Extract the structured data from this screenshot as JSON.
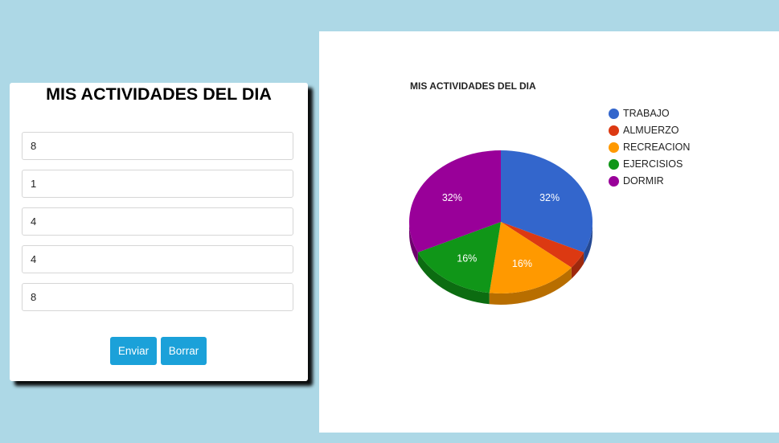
{
  "form": {
    "title": "MIS ACTIVIDADES DEL DIA",
    "fields": [
      "8",
      "1",
      "4",
      "4",
      "8"
    ],
    "buttons": {
      "submit": "Enviar",
      "reset": "Borrar"
    }
  },
  "chart_data": {
    "type": "pie",
    "title": "MIS ACTIVIDADES DEL DIA",
    "is3D": true,
    "legend_position": "right",
    "labels": [
      "TRABAJO",
      "ALMUERZO",
      "RECREACION",
      "EJERCISIOS",
      "DORMIR"
    ],
    "values": [
      8,
      1,
      4,
      4,
      8
    ],
    "percent_labels": [
      "32%",
      "",
      "16%",
      "16%",
      "32%"
    ],
    "colors": [
      "#3366cc",
      "#dc3912",
      "#ff9900",
      "#109618",
      "#990099"
    ]
  },
  "colors": {
    "background": "#add8e6",
    "button": "#1ba1d9"
  }
}
